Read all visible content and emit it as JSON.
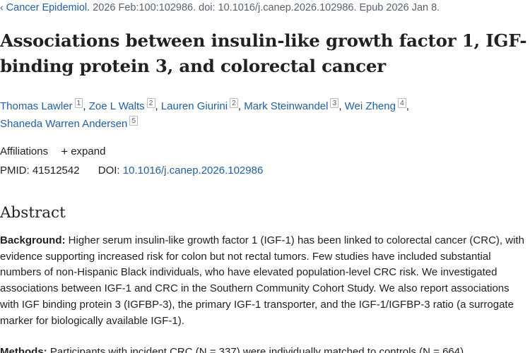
{
  "citation": {
    "chevron": "‹",
    "journal": "Cancer Epidemiol.",
    "details": " 2026 Feb:100:102986. doi: 10.1016/j.canep.2026.102986. Epub 2026 Jan 8."
  },
  "article": {
    "title": "Associations between insulin-like growth factor 1, IGF-binding protein 3, and colorectal cancer"
  },
  "authors": [
    {
      "name": "Thomas Lawler",
      "aff": "1"
    },
    {
      "name": "Zoe L Walts",
      "aff": "2"
    },
    {
      "name": "Lauren Giurini",
      "aff": "2"
    },
    {
      "name": "Mark Steinwandel",
      "aff": "3"
    },
    {
      "name": "Wei Zheng",
      "aff": "4"
    },
    {
      "name": "Shaneda Warren Andersen",
      "aff": "5"
    }
  ],
  "affiliations": {
    "label": "Affiliations",
    "expand_icon": "+",
    "expand_label": "expand"
  },
  "identifiers": {
    "pmid_label": "PMID:",
    "pmid": "41512542",
    "doi_label": "DOI:",
    "doi": "10.1016/j.canep.2026.102986"
  },
  "abstract": {
    "heading": "Abstract",
    "background_label": "Background:",
    "background_text": " Higher serum insulin-like growth factor 1 (IGF-1) has been linked to colorectal cancer (CRC), with evidence supporting increased risk for colon but not rectal tumors. Few studies have included substantial numbers of non-Hispanic Black individuals, who have elevated population-level CRC risk. We investigated associations between IGF-1 and CRC in the Southern Community Cohort Study. We also report associations with IGF binding protein 3 (IGFBP-3), the primary IGF-1 transporter, and the IGF-1/IGFBP-3 ratio (a surrogate marker for biologically available IGF-1).",
    "methods_label": "Methods:",
    "methods_text": " Participants with incident CRC (N = 337) were individually matched to controls (N = 664)"
  }
}
